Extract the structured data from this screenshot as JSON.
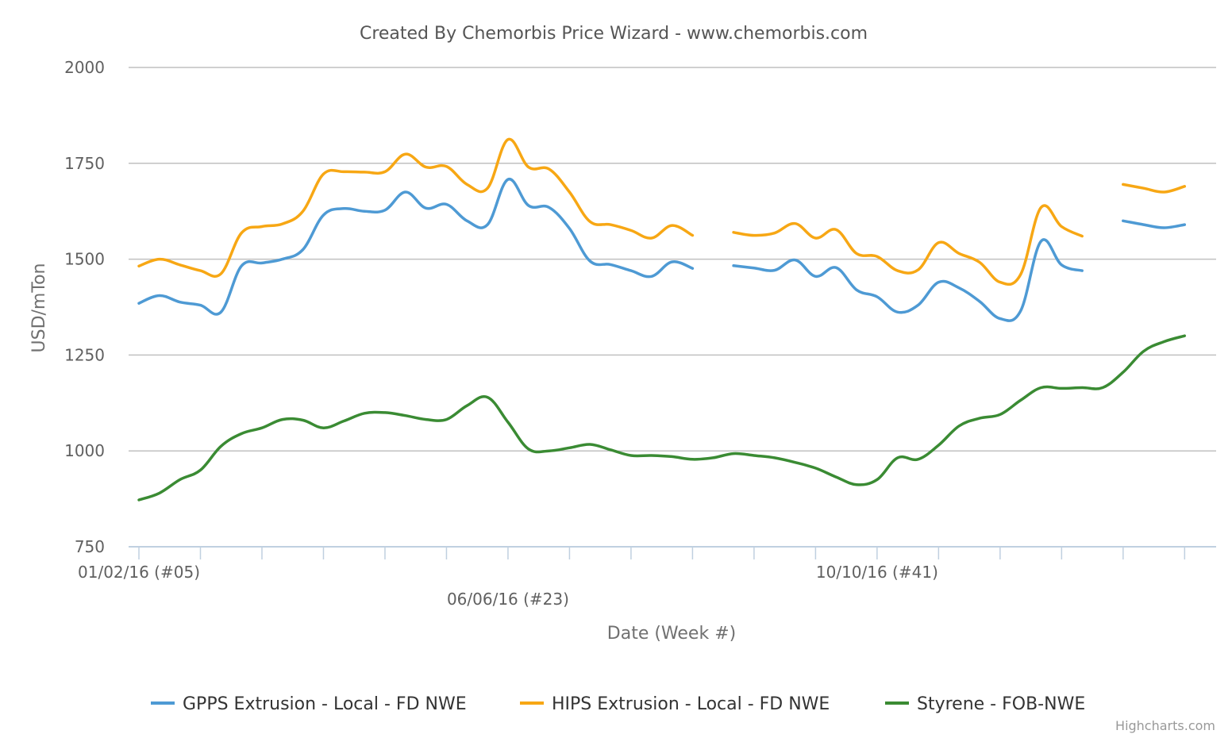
{
  "chart_data": {
    "type": "line",
    "title": "Created By Chemorbis Price Wizard - www.chemorbis.com",
    "xlabel": "Date (Week #)",
    "ylabel": "USD/mTon",
    "ylim": [
      750,
      2000
    ],
    "yticks": [
      750,
      1000,
      1250,
      1500,
      1750,
      2000
    ],
    "grid": true,
    "legend_position": "bottom",
    "credits": "Highcharts.com",
    "x_start_week": 5,
    "x_end_week": 58,
    "x_tick_labels": [
      {
        "label": "01/02/16 (#05)",
        "week": 5,
        "row": 1
      },
      {
        "label": "06/06/16 (#23)",
        "week": 23,
        "row": 2
      },
      {
        "label": "10/10/16 (#41)",
        "week": 41,
        "row": 1
      }
    ],
    "series": [
      {
        "name": "GPPS Extrusion - Local - FD NWE",
        "color": "#4e9ad4",
        "values": [
          1385,
          1405,
          1388,
          1380,
          1362,
          1482,
          1490,
          1500,
          1525,
          1615,
          1632,
          1625,
          1628,
          1675,
          1633,
          1643,
          1600,
          1590,
          1708,
          1640,
          1635,
          1580,
          1495,
          1486,
          1470,
          1455,
          1493,
          1476,
          null,
          1483,
          1477,
          1471,
          1498,
          1455,
          1478,
          1420,
          1402,
          1362,
          1380,
          1440,
          1425,
          1390,
          1345,
          1365,
          1547,
          1485,
          1470,
          null,
          1600,
          1590,
          1582,
          1590,
          null,
          null
        ],
        "segments": [
          [
            0,
            27
          ],
          [
            29,
            46
          ],
          [
            48,
            51
          ]
        ]
      },
      {
        "name": "HIPS Extrusion - Local - FD NWE",
        "color": "#f7a714",
        "values": [
          1482,
          1500,
          1485,
          1470,
          1462,
          1568,
          1585,
          1592,
          1625,
          1722,
          1728,
          1727,
          1728,
          1774,
          1740,
          1742,
          1695,
          1685,
          1812,
          1740,
          1735,
          1675,
          1598,
          1590,
          1575,
          1555,
          1588,
          1562,
          null,
          1570,
          1562,
          1568,
          1593,
          1555,
          1577,
          1515,
          1507,
          1470,
          1472,
          1543,
          1515,
          1492,
          1440,
          1460,
          1635,
          1585,
          1560,
          null,
          1695,
          1685,
          1675,
          1690,
          null,
          null
        ],
        "segments": [
          [
            0,
            27
          ],
          [
            29,
            46
          ],
          [
            48,
            51
          ]
        ]
      },
      {
        "name": "Styrene - FOB-NWE",
        "color": "#3a8b33",
        "values": [
          872,
          890,
          925,
          950,
          1012,
          1045,
          1060,
          1082,
          1080,
          1060,
          1078,
          1098,
          1100,
          1092,
          1082,
          1082,
          1118,
          1140,
          1075,
          1005,
          1000,
          1008,
          1017,
          1003,
          988,
          988,
          985,
          978,
          982,
          993,
          988,
          982,
          970,
          955,
          932,
          912,
          925,
          982,
          978,
          1015,
          1065,
          1085,
          1095,
          1132,
          1165,
          1163,
          1165,
          1165,
          1205,
          1260,
          1285,
          1300,
          null,
          null
        ],
        "segments": [
          [
            0,
            51
          ]
        ]
      }
    ]
  }
}
